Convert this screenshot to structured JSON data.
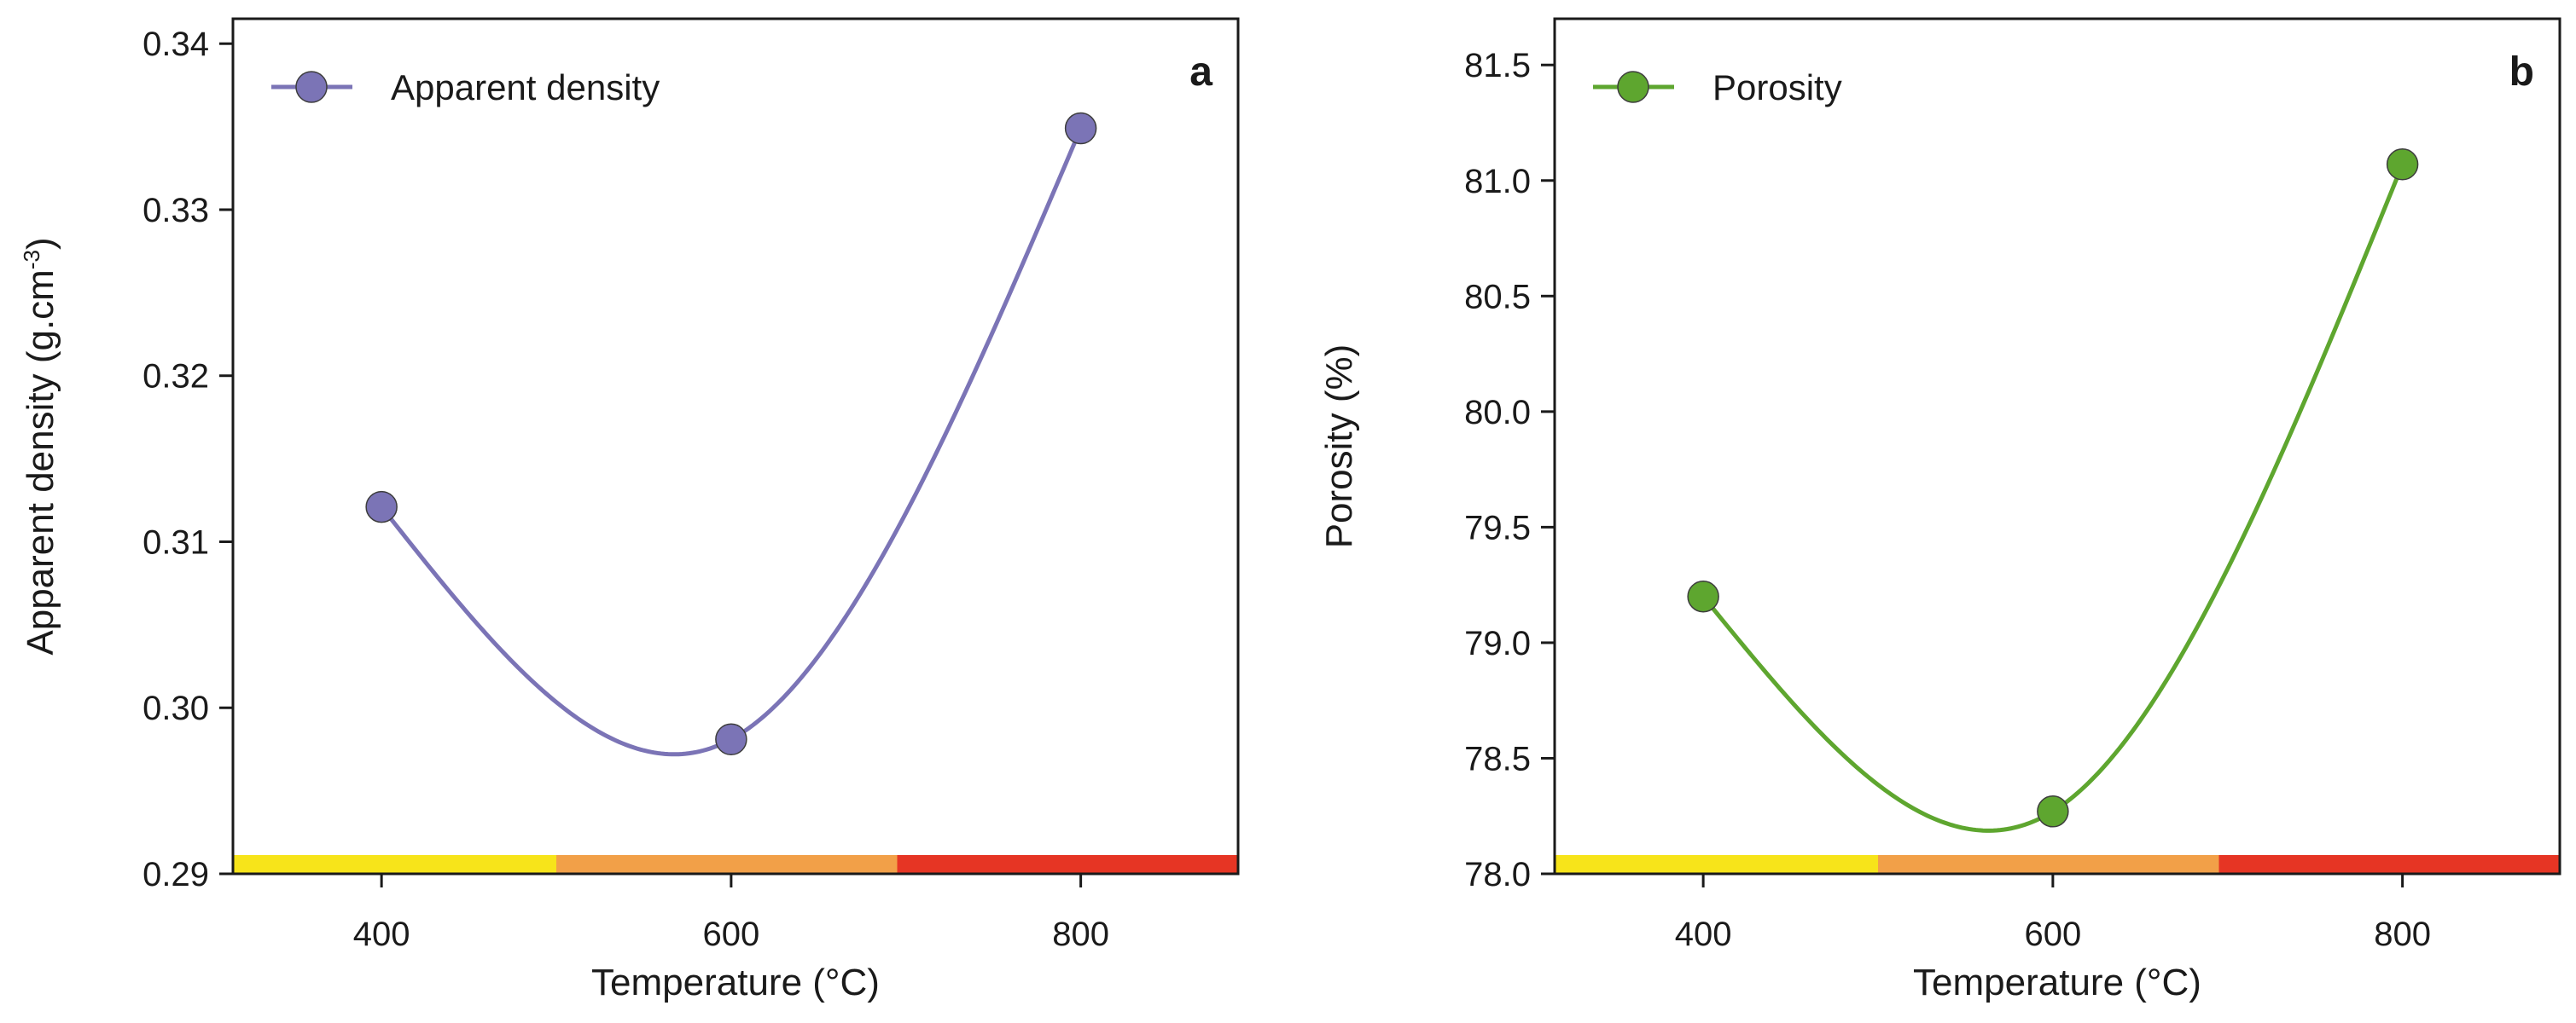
{
  "chart_data": [
    {
      "type": "line",
      "panel_label": "a",
      "xlabel": "Temperature (°C)",
      "ylabel": "Apparent density (g.cm",
      "ylabel_sup": "-3",
      "ylabel_close": ")",
      "legend_label": "Apparent density",
      "legend_position": "top-left",
      "color": "#7b74b6",
      "x": [
        400,
        600,
        800
      ],
      "values": [
        0.3121,
        0.2981,
        0.3349
      ],
      "xlim": [
        315,
        890
      ],
      "ylim": [
        0.29,
        0.3415
      ],
      "xticks": [
        400,
        600,
        800
      ],
      "xtick_labels": [
        "400",
        "600",
        "800"
      ],
      "yticks": [
        0.29,
        0.3,
        0.31,
        0.32,
        0.33,
        0.34
      ],
      "ytick_labels": [
        "0.29",
        "0.30",
        "0.31",
        "0.32",
        "0.33",
        "0.34"
      ],
      "temperature_bands": [
        {
          "from": 315,
          "to": 500,
          "color": "#f7e41a"
        },
        {
          "from": 500,
          "to": 695,
          "color": "#f2a048"
        },
        {
          "from": 695,
          "to": 890,
          "color": "#e63524"
        }
      ]
    },
    {
      "type": "line",
      "panel_label": "b",
      "xlabel": "Temperature (°C)",
      "ylabel": "Porosity (%)",
      "ylabel_sup": "",
      "ylabel_close": "",
      "legend_label": "Porosity",
      "legend_position": "top-left",
      "color": "#5ea62f",
      "x": [
        400,
        600,
        800
      ],
      "values": [
        79.2,
        78.27,
        81.07
      ],
      "xlim": [
        315,
        890
      ],
      "ylim": [
        78.0,
        81.7
      ],
      "xticks": [
        400,
        600,
        800
      ],
      "xtick_labels": [
        "400",
        "600",
        "800"
      ],
      "yticks": [
        78.0,
        78.5,
        79.0,
        79.5,
        80.0,
        80.5,
        81.0,
        81.5
      ],
      "ytick_labels": [
        "78.0",
        "78.5",
        "79.0",
        "79.5",
        "80.0",
        "80.5",
        "81.0",
        "81.5"
      ],
      "temperature_bands": [
        {
          "from": 315,
          "to": 500,
          "color": "#f7e41a"
        },
        {
          "from": 500,
          "to": 695,
          "color": "#f2a048"
        },
        {
          "from": 695,
          "to": 890,
          "color": "#e63524"
        }
      ]
    }
  ]
}
